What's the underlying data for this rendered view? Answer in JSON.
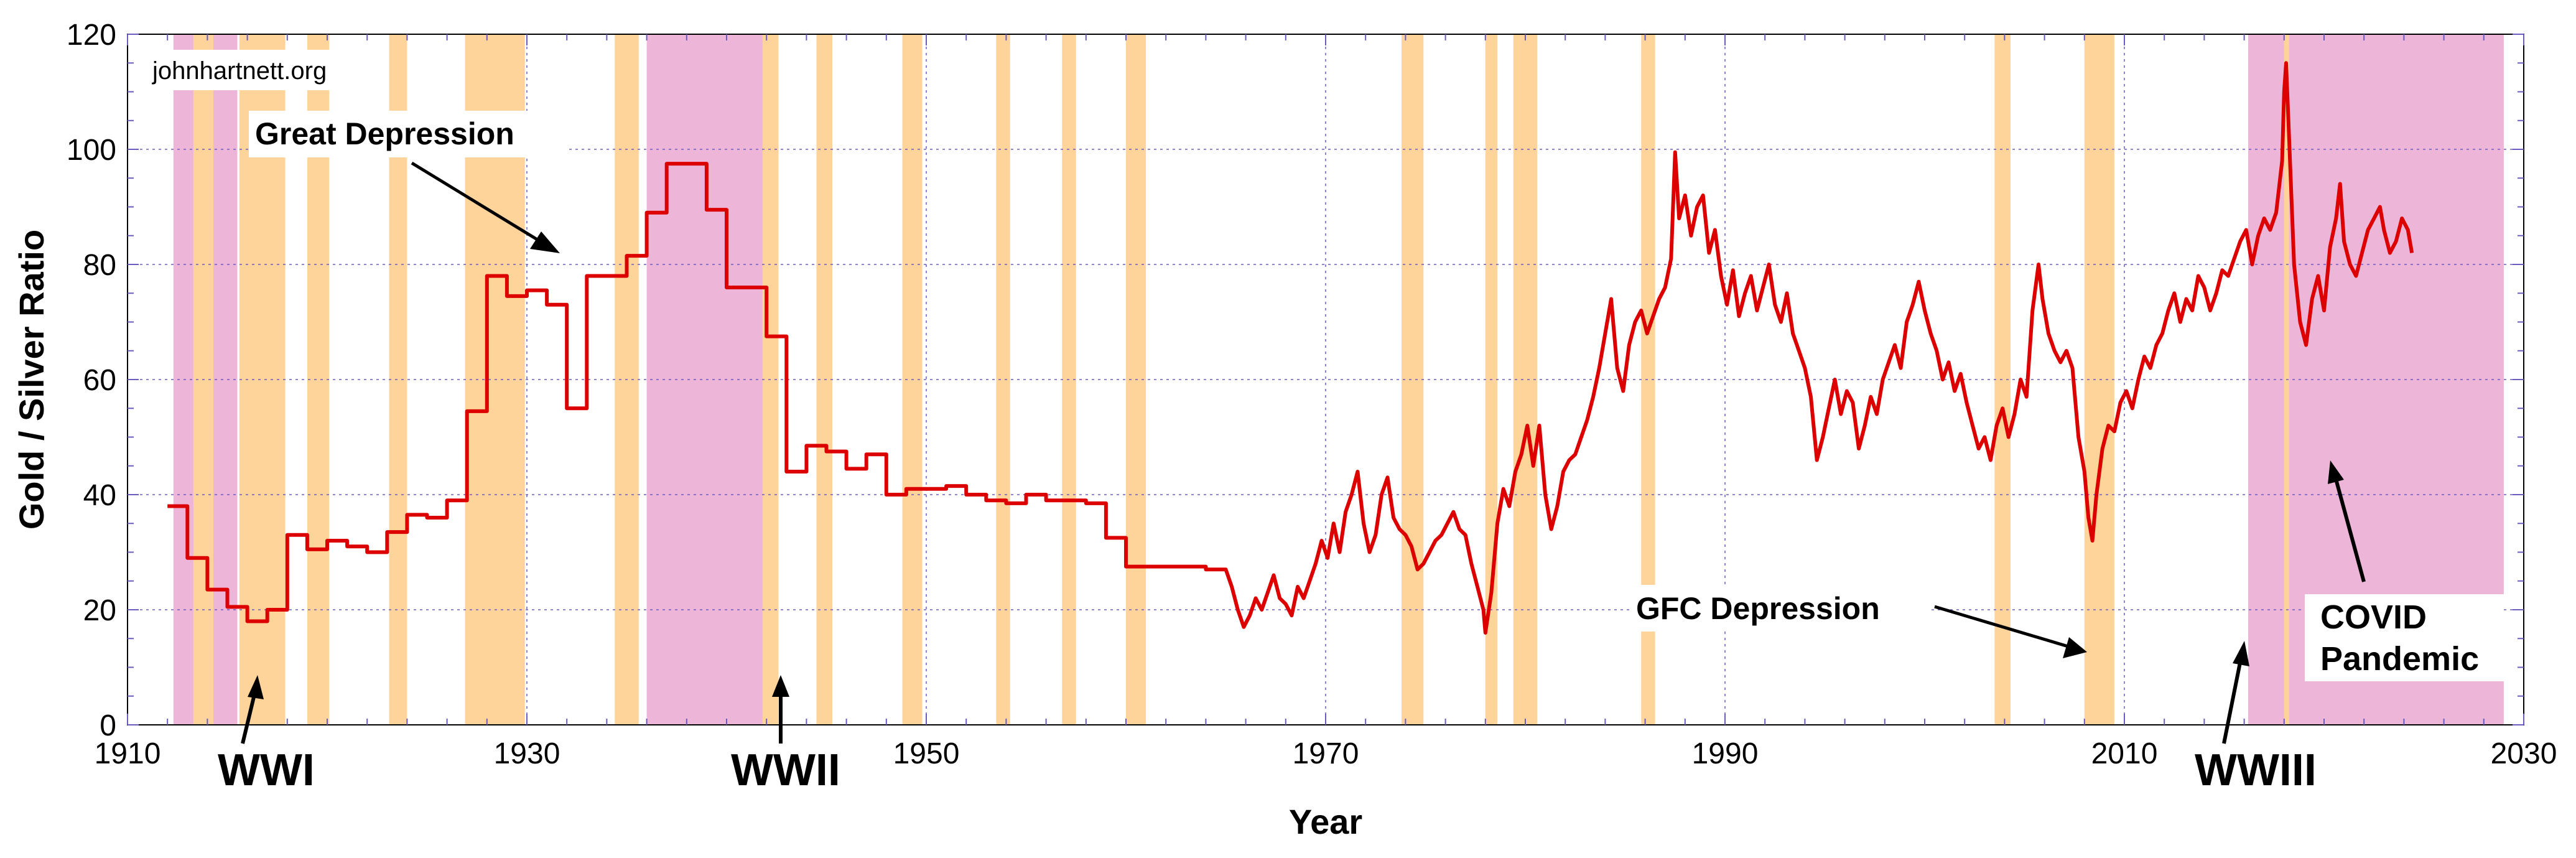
{
  "chart_data": {
    "type": "line",
    "xlabel": "Year",
    "ylabel": "Gold / Silver Ratio",
    "xlim": [
      1910,
      2030
    ],
    "ylim": [
      0,
      120
    ],
    "xticks": [
      1910,
      1930,
      1950,
      1970,
      1990,
      2010,
      2030
    ],
    "yticks": [
      0,
      20,
      40,
      60,
      80,
      100,
      120
    ],
    "grid": true,
    "watermark": "johnhartnett.org",
    "colors": {
      "line": "#dd0000",
      "recession": "#ffd49b",
      "war": "#edb6d8",
      "grid": "#6b5bbf"
    },
    "series": [
      {
        "points": [
          [
            1912.0,
            38
          ],
          [
            1913.0,
            38
          ],
          [
            1913.0,
            29
          ],
          [
            1914.0,
            29
          ],
          [
            1914.0,
            23.5
          ],
          [
            1915.0,
            23.5
          ],
          [
            1915.0,
            20.5
          ],
          [
            1916.0,
            20.5
          ],
          [
            1916.0,
            18
          ],
          [
            1917.0,
            18
          ],
          [
            1917.0,
            20
          ],
          [
            1918.0,
            20
          ],
          [
            1918.0,
            33
          ],
          [
            1919.0,
            33
          ],
          [
            1919.0,
            30.5
          ],
          [
            1920.0,
            30.5
          ],
          [
            1920.0,
            32
          ],
          [
            1921.0,
            32
          ],
          [
            1921.0,
            31
          ],
          [
            1922.0,
            31
          ],
          [
            1922.0,
            30
          ],
          [
            1923.0,
            30
          ],
          [
            1923.0,
            33.5
          ],
          [
            1924.0,
            33.5
          ],
          [
            1924.0,
            36.5
          ],
          [
            1925.0,
            36.5
          ],
          [
            1925.0,
            36
          ],
          [
            1926.0,
            36
          ],
          [
            1926.0,
            39
          ],
          [
            1927.0,
            39
          ],
          [
            1927.0,
            54.5
          ],
          [
            1928.0,
            54.5
          ],
          [
            1928.0,
            78
          ],
          [
            1929.0,
            78
          ],
          [
            1929.0,
            74.5
          ],
          [
            1930.0,
            74.5
          ],
          [
            1930.0,
            75.5
          ],
          [
            1931.0,
            75.5
          ],
          [
            1931.0,
            73
          ],
          [
            1932.0,
            73
          ],
          [
            1932.0,
            55
          ],
          [
            1933.0,
            55
          ],
          [
            1933.0,
            78
          ],
          [
            1935.0,
            78
          ],
          [
            1935.0,
            81.5
          ],
          [
            1936.0,
            81.5
          ],
          [
            1936.0,
            89
          ],
          [
            1937.0,
            89
          ],
          [
            1937.0,
            97.5
          ],
          [
            1939.0,
            97.5
          ],
          [
            1939.0,
            89.5
          ],
          [
            1940.0,
            89.5
          ],
          [
            1940.0,
            76
          ],
          [
            1942.0,
            76
          ],
          [
            1942.0,
            67.5
          ],
          [
            1943.0,
            67.5
          ],
          [
            1943.0,
            44
          ],
          [
            1944.0,
            44
          ],
          [
            1944.0,
            48.5
          ],
          [
            1945.0,
            48.5
          ],
          [
            1945.0,
            47.5
          ],
          [
            1946.0,
            47.5
          ],
          [
            1946.0,
            44.5
          ],
          [
            1947.0,
            44.5
          ],
          [
            1947.0,
            47
          ],
          [
            1948.0,
            47
          ],
          [
            1948.0,
            40
          ],
          [
            1949.0,
            40
          ],
          [
            1949.0,
            41
          ],
          [
            1951.0,
            41
          ],
          [
            1951.0,
            41.5
          ],
          [
            1952.0,
            41.5
          ],
          [
            1952.0,
            40
          ],
          [
            1953.0,
            40
          ],
          [
            1953.0,
            39
          ],
          [
            1954.0,
            39
          ],
          [
            1954.0,
            38.5
          ],
          [
            1955.0,
            38.5
          ],
          [
            1955.0,
            40
          ],
          [
            1956.0,
            40
          ],
          [
            1956.0,
            39
          ],
          [
            1958.0,
            39
          ],
          [
            1958.0,
            38.5
          ],
          [
            1959.0,
            38.5
          ],
          [
            1959.0,
            32.5
          ],
          [
            1960.0,
            32.5
          ],
          [
            1960.0,
            27.5
          ],
          [
            1964.0,
            27.5
          ],
          [
            1964.0,
            27
          ],
          [
            1965.0,
            27
          ],
          [
            1965.3,
            24
          ],
          [
            1965.6,
            20
          ],
          [
            1965.9,
            17
          ],
          [
            1966.2,
            19
          ],
          [
            1966.5,
            22
          ],
          [
            1966.8,
            20
          ],
          [
            1967.1,
            23
          ],
          [
            1967.4,
            26
          ],
          [
            1967.7,
            22
          ],
          [
            1968.0,
            21
          ],
          [
            1968.3,
            19
          ],
          [
            1968.6,
            24
          ],
          [
            1968.9,
            22
          ],
          [
            1969.2,
            25
          ],
          [
            1969.5,
            28
          ],
          [
            1969.8,
            32
          ],
          [
            1970.1,
            29
          ],
          [
            1970.4,
            35
          ],
          [
            1970.7,
            30
          ],
          [
            1971.0,
            37
          ],
          [
            1971.3,
            40
          ],
          [
            1971.6,
            44
          ],
          [
            1971.9,
            35
          ],
          [
            1972.2,
            30
          ],
          [
            1972.5,
            33
          ],
          [
            1972.8,
            40
          ],
          [
            1973.1,
            43
          ],
          [
            1973.4,
            36
          ],
          [
            1973.7,
            34
          ],
          [
            1974.0,
            33
          ],
          [
            1974.3,
            31
          ],
          [
            1974.6,
            27
          ],
          [
            1974.9,
            28
          ],
          [
            1975.2,
            30
          ],
          [
            1975.5,
            32
          ],
          [
            1975.8,
            33
          ],
          [
            1976.1,
            35
          ],
          [
            1976.4,
            37
          ],
          [
            1976.7,
            34
          ],
          [
            1977.0,
            33
          ],
          [
            1977.3,
            28
          ],
          [
            1977.6,
            24
          ],
          [
            1977.9,
            20
          ],
          [
            1978.0,
            16
          ],
          [
            1978.3,
            23
          ],
          [
            1978.6,
            35
          ],
          [
            1978.9,
            41
          ],
          [
            1979.2,
            38
          ],
          [
            1979.5,
            44
          ],
          [
            1979.8,
            47
          ],
          [
            1980.1,
            52
          ],
          [
            1980.4,
            45
          ],
          [
            1980.7,
            52
          ],
          [
            1981.0,
            40
          ],
          [
            1981.3,
            34
          ],
          [
            1981.6,
            38
          ],
          [
            1981.9,
            44
          ],
          [
            1982.2,
            46
          ],
          [
            1982.5,
            47
          ],
          [
            1982.8,
            50
          ],
          [
            1983.1,
            53
          ],
          [
            1983.4,
            57
          ],
          [
            1983.7,
            62
          ],
          [
            1984.0,
            68
          ],
          [
            1984.3,
            74
          ],
          [
            1984.6,
            62
          ],
          [
            1984.9,
            58
          ],
          [
            1985.2,
            66
          ],
          [
            1985.5,
            70
          ],
          [
            1985.8,
            72
          ],
          [
            1986.1,
            68
          ],
          [
            1986.4,
            71
          ],
          [
            1986.7,
            74
          ],
          [
            1987.0,
            76
          ],
          [
            1987.3,
            81
          ],
          [
            1987.5,
            99.5
          ],
          [
            1987.7,
            88
          ],
          [
            1988.0,
            92
          ],
          [
            1988.3,
            85
          ],
          [
            1988.6,
            90
          ],
          [
            1988.9,
            92
          ],
          [
            1989.2,
            82
          ],
          [
            1989.5,
            86
          ],
          [
            1989.8,
            78
          ],
          [
            1990.1,
            73
          ],
          [
            1990.4,
            79
          ],
          [
            1990.7,
            71
          ],
          [
            1991.0,
            75
          ],
          [
            1991.3,
            78
          ],
          [
            1991.6,
            72
          ],
          [
            1991.9,
            76
          ],
          [
            1992.2,
            80
          ],
          [
            1992.5,
            73
          ],
          [
            1992.8,
            70
          ],
          [
            1993.1,
            75
          ],
          [
            1993.4,
            68
          ],
          [
            1993.7,
            65
          ],
          [
            1994.0,
            62
          ],
          [
            1994.3,
            57
          ],
          [
            1994.6,
            46
          ],
          [
            1994.9,
            50
          ],
          [
            1995.2,
            55
          ],
          [
            1995.5,
            60
          ],
          [
            1995.8,
            54
          ],
          [
            1996.1,
            58
          ],
          [
            1996.4,
            56
          ],
          [
            1996.7,
            48
          ],
          [
            1997.0,
            52
          ],
          [
            1997.3,
            57
          ],
          [
            1997.6,
            54
          ],
          [
            1997.9,
            60
          ],
          [
            1998.2,
            63
          ],
          [
            1998.5,
            66
          ],
          [
            1998.8,
            62
          ],
          [
            1999.1,
            70
          ],
          [
            1999.4,
            73
          ],
          [
            1999.7,
            77
          ],
          [
            2000.0,
            72
          ],
          [
            2000.3,
            68
          ],
          [
            2000.6,
            65
          ],
          [
            2000.9,
            60
          ],
          [
            2001.2,
            63
          ],
          [
            2001.5,
            58
          ],
          [
            2001.8,
            61
          ],
          [
            2002.1,
            56
          ],
          [
            2002.4,
            52
          ],
          [
            2002.7,
            48
          ],
          [
            2003.0,
            50
          ],
          [
            2003.3,
            46
          ],
          [
            2003.6,
            52
          ],
          [
            2003.9,
            55
          ],
          [
            2004.2,
            50
          ],
          [
            2004.5,
            54
          ],
          [
            2004.8,
            60
          ],
          [
            2005.1,
            57
          ],
          [
            2005.4,
            72
          ],
          [
            2005.7,
            80
          ],
          [
            2005.9,
            74
          ],
          [
            2006.2,
            68
          ],
          [
            2006.5,
            65
          ],
          [
            2006.8,
            63
          ],
          [
            2007.1,
            65
          ],
          [
            2007.4,
            62
          ],
          [
            2007.7,
            50
          ],
          [
            2008.0,
            44
          ],
          [
            2008.2,
            36
          ],
          [
            2008.4,
            32
          ],
          [
            2008.6,
            40
          ],
          [
            2008.9,
            48
          ],
          [
            2009.2,
            52
          ],
          [
            2009.5,
            51
          ],
          [
            2009.8,
            56
          ],
          [
            2010.1,
            58
          ],
          [
            2010.4,
            55
          ],
          [
            2010.7,
            60
          ],
          [
            2011.0,
            64
          ],
          [
            2011.3,
            62
          ],
          [
            2011.6,
            66
          ],
          [
            2011.9,
            68
          ],
          [
            2012.2,
            72
          ],
          [
            2012.5,
            75
          ],
          [
            2012.8,
            70
          ],
          [
            2013.1,
            74
          ],
          [
            2013.4,
            72
          ],
          [
            2013.7,
            78
          ],
          [
            2014.0,
            76
          ],
          [
            2014.3,
            72
          ],
          [
            2014.6,
            75
          ],
          [
            2014.9,
            79
          ],
          [
            2015.2,
            78
          ],
          [
            2015.5,
            81
          ],
          [
            2015.8,
            84
          ],
          [
            2016.1,
            86
          ],
          [
            2016.4,
            80
          ],
          [
            2016.7,
            85
          ],
          [
            2017.0,
            88
          ],
          [
            2017.3,
            86
          ],
          [
            2017.6,
            89
          ],
          [
            2017.9,
            98
          ],
          [
            2018.0,
            110
          ],
          [
            2018.1,
            115
          ],
          [
            2018.25,
            102
          ],
          [
            2018.5,
            80
          ],
          [
            2018.8,
            70
          ],
          [
            2019.1,
            66
          ],
          [
            2019.4,
            74
          ],
          [
            2019.7,
            78
          ],
          [
            2020.0,
            72
          ],
          [
            2020.3,
            83
          ],
          [
            2020.6,
            88
          ],
          [
            2020.8,
            94
          ],
          [
            2021.0,
            84
          ],
          [
            2021.3,
            80
          ],
          [
            2021.6,
            78
          ],
          [
            2021.9,
            82
          ],
          [
            2022.2,
            86
          ],
          [
            2022.5,
            88
          ],
          [
            2022.8,
            90
          ],
          [
            2023.0,
            86
          ],
          [
            2023.3,
            82
          ],
          [
            2023.6,
            84
          ],
          [
            2023.9,
            88
          ],
          [
            2024.2,
            86
          ],
          [
            2024.4,
            82
          ]
        ]
      }
    ],
    "recession_bands": [
      [
        1913.3,
        1914.3
      ],
      [
        1915.6,
        1917.9
      ],
      [
        1919.0,
        1920.1
      ],
      [
        1923.1,
        1924.0
      ],
      [
        1926.9,
        1929.9
      ],
      [
        1934.4,
        1935.6
      ],
      [
        1941.8,
        1942.6
      ],
      [
        1944.5,
        1945.3
      ],
      [
        1948.8,
        1949.8
      ],
      [
        1953.5,
        1954.2
      ],
      [
        1956.8,
        1957.5
      ],
      [
        1960.0,
        1961.0
      ],
      [
        1973.8,
        1974.9
      ],
      [
        1978.0,
        1978.6
      ],
      [
        1979.4,
        1980.6
      ],
      [
        1985.8,
        1986.5
      ],
      [
        2003.5,
        2004.3
      ],
      [
        2008.0,
        2009.5
      ],
      [
        2018.0,
        2018.25
      ]
    ],
    "war_bands": [
      [
        1912.3,
        1915.5
      ],
      [
        1936.0,
        1941.9
      ],
      [
        2016.2,
        2029.0
      ]
    ],
    "annotations": [
      {
        "label": "Great Depression"
      },
      {
        "label": "GFC Depression"
      },
      {
        "label": "WWI"
      },
      {
        "label": "WWII"
      },
      {
        "label": "WWIII"
      },
      {
        "label": "COVID"
      },
      {
        "label": "Pandemic"
      }
    ]
  }
}
